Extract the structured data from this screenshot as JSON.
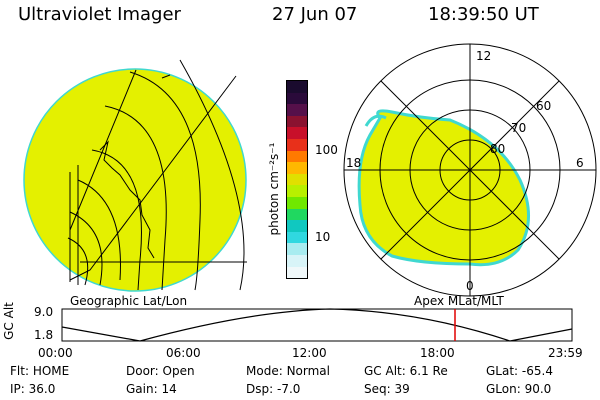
{
  "header": {
    "title": "Ultraviolet Imager",
    "date": "27 Jun 07",
    "time": "18:39:50 UT"
  },
  "left_panel": {
    "label": "Geographic Lat/Lon"
  },
  "right_panel": {
    "label": "Apex MLat/MLT",
    "mlt_labels": [
      "12",
      "18",
      "6",
      "0"
    ],
    "mlat_labels": [
      "60",
      "70",
      "80"
    ]
  },
  "colorbar": {
    "unit_label": "photon cm⁻²s⁻¹",
    "ticks": [
      "100",
      "10"
    ],
    "colors": [
      "#1a0b2e",
      "#2a0a3a",
      "#55104a",
      "#8a1230",
      "#c8102a",
      "#e8301a",
      "#ff7a00",
      "#ffb800",
      "#e0e000",
      "#b8f000",
      "#70e800",
      "#20d860",
      "#10c8c0",
      "#30d8e0",
      "#a8ecf0",
      "#d8f4f8",
      "#f0f8fa"
    ]
  },
  "altitude_plot": {
    "y_label": "GC Alt",
    "y_ticks": [
      "9.0",
      "1.8"
    ],
    "x_ticks": [
      "00:00",
      "06:00",
      "12:00",
      "18:00",
      "23:59"
    ],
    "marker_color": "#e00000"
  },
  "status": {
    "row1": [
      {
        "label": "Flt:",
        "value": "HOME"
      },
      {
        "label": "Door:",
        "value": "Open"
      },
      {
        "label": "Mode:",
        "value": "Normal"
      },
      {
        "label": "GC Alt:",
        "value": "6.1 Re"
      },
      {
        "label": "GLat:",
        "value": "-65.4"
      }
    ],
    "row2": [
      {
        "label": "IP:",
        "value": "36.0"
      },
      {
        "label": "Gain:",
        "value": "14"
      },
      {
        "label": "Dsp:",
        "value": "-7.0"
      },
      {
        "label": "Seq:",
        "value": "39"
      },
      {
        "label": "GLon:",
        "value": "90.0"
      }
    ]
  },
  "colors": {
    "emission": "#e4f000",
    "emission_edge": "#40d8d0",
    "grid": "#000000"
  }
}
